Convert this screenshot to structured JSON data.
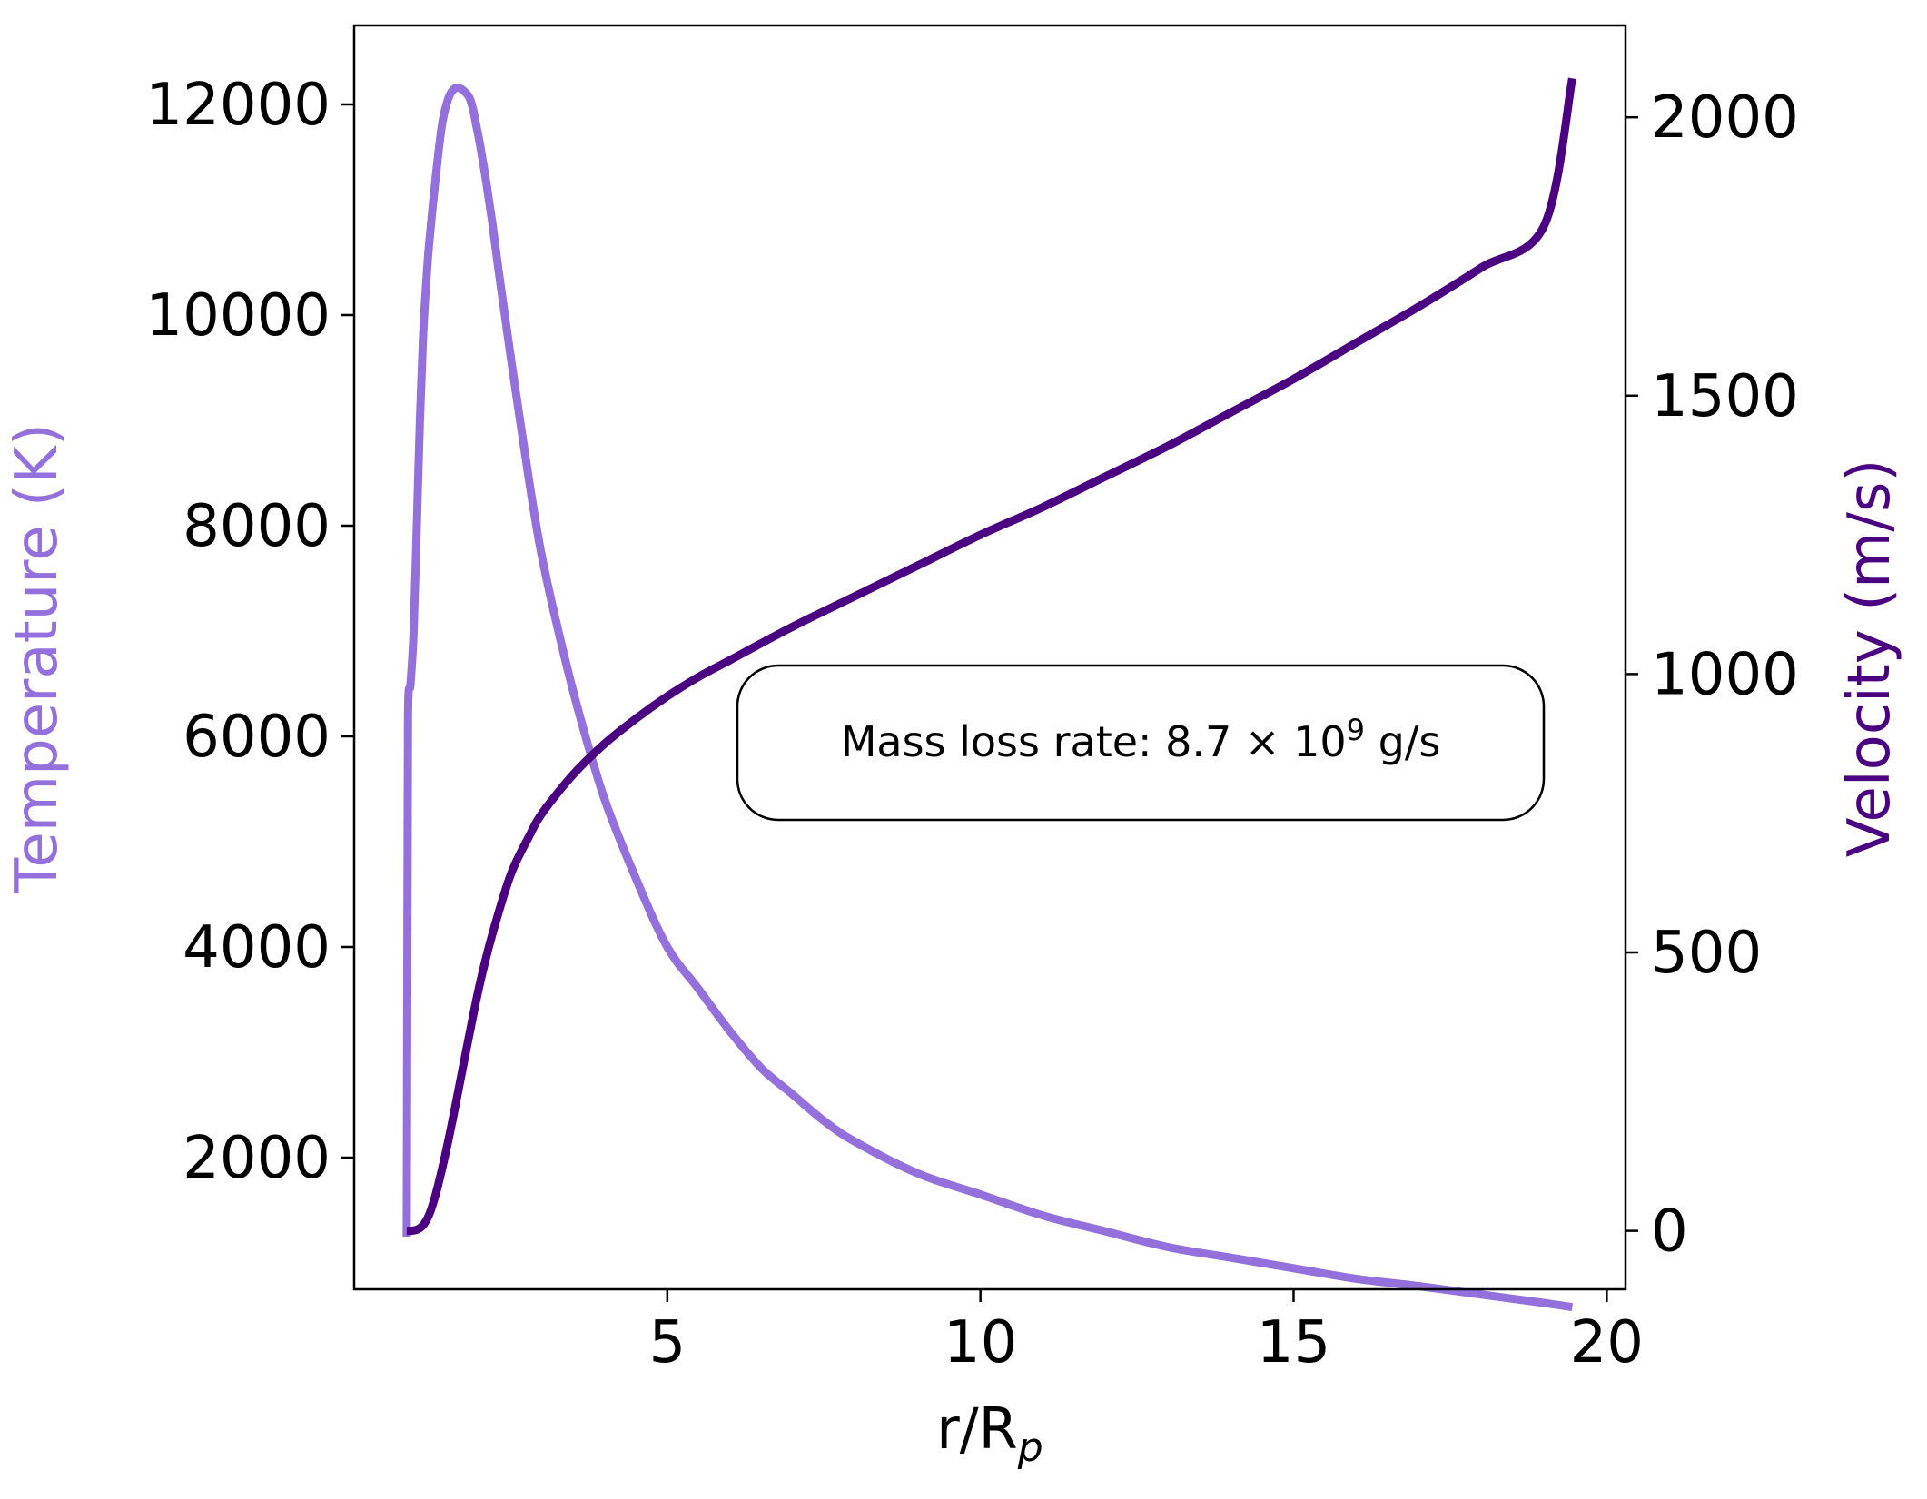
{
  "chart_data": {
    "type": "line",
    "title": "",
    "xlabel": "r/R",
    "xlabel_subscript": "p",
    "ylabel_left": "Temperature (K)",
    "ylabel_right": "Velocity (m/s)",
    "xlim": [
      0,
      20.3
    ],
    "ylim_left": [
      750,
      12750
    ],
    "ylim_right": [
      -105,
      2165
    ],
    "x_ticks": [
      5,
      10,
      15,
      20
    ],
    "y_ticks_left": [
      2000,
      4000,
      6000,
      8000,
      10000,
      12000
    ],
    "y_ticks_right": [
      0,
      500,
      1000,
      1500,
      2000
    ],
    "grid": false,
    "annotation": {
      "text": "Mass loss rate: 8.7 × 10",
      "superscript": "9",
      "suffix": " g/s"
    },
    "colors": {
      "temperature": "#9370db",
      "velocity": "#4b0082",
      "axes": "#000000"
    },
    "series": [
      {
        "axis": "left",
        "x": [
          0.84,
          0.85,
          0.86,
          0.9,
          0.95,
          1.0,
          1.05,
          1.1,
          1.15,
          1.2,
          1.3,
          1.4,
          1.5,
          1.6,
          1.7,
          1.8,
          1.85,
          1.9,
          1.95,
          2.0,
          2.1,
          2.2,
          2.3,
          2.5,
          2.8,
          3.0,
          3.3,
          3.6,
          4.0,
          4.5,
          5.0,
          5.5,
          6.0,
          6.5,
          7.0,
          7.5,
          8.0,
          9.0,
          10.0,
          11.0,
          12.0,
          13.0,
          14.0,
          15.0,
          16.0,
          17.0,
          18.0,
          19.0,
          19.45
        ],
        "y": [
          1250,
          4000,
          6200,
          6500,
          7000,
          8000,
          9000,
          9800,
          10300,
          10700,
          11300,
          11800,
          12050,
          12150,
          12150,
          12100,
          12050,
          11950,
          11800,
          11650,
          11300,
          10900,
          10450,
          9600,
          8400,
          7700,
          6900,
          6200,
          5400,
          4650,
          4000,
          3600,
          3200,
          2850,
          2600,
          2350,
          2150,
          1850,
          1650,
          1450,
          1300,
          1150,
          1050,
          950,
          850,
          780,
          700,
          620,
          580
        ]
      },
      {
        "axis": "right",
        "x": [
          0.84,
          0.9,
          1.0,
          1.1,
          1.2,
          1.3,
          1.4,
          1.5,
          1.6,
          1.8,
          2.0,
          2.2,
          2.5,
          2.8,
          3.0,
          3.5,
          4.0,
          4.5,
          5.0,
          5.5,
          6.0,
          7.0,
          8.0,
          9.0,
          10.0,
          11.0,
          12.0,
          13.0,
          14.0,
          15.0,
          16.0,
          17.0,
          18.0,
          19.0,
          19.45
        ],
        "y": [
          0,
          0,
          2,
          10,
          30,
          65,
          110,
          160,
          215,
          330,
          440,
          530,
          640,
          710,
          750,
          820,
          875,
          920,
          960,
          995,
          1025,
          1085,
          1140,
          1195,
          1250,
          1300,
          1355,
          1410,
          1470,
          1530,
          1595,
          1660,
          1730,
          1805,
          2070
        ]
      }
    ]
  }
}
